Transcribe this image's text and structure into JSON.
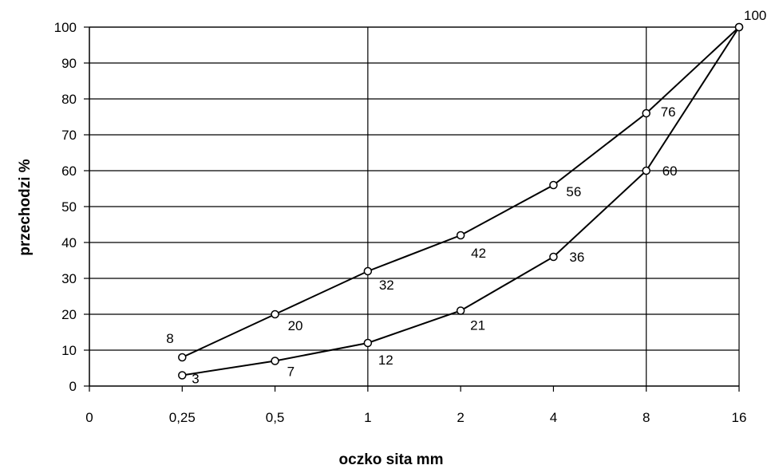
{
  "chart_data": {
    "type": "line",
    "title": "",
    "xlabel": "oczko sita mm",
    "ylabel": "przechodzi %",
    "x_tick_labels": [
      "0",
      "0,25",
      "0,5",
      "1",
      "2",
      "4",
      "8",
      "16"
    ],
    "x": [
      0.25,
      0.5,
      1,
      2,
      4,
      8,
      16
    ],
    "ylim": [
      0,
      100
    ],
    "y_ticks": [
      0,
      10,
      20,
      30,
      40,
      50,
      60,
      70,
      80,
      90,
      100
    ],
    "grid": "horizontal and vertical at 1, 8",
    "legend": "none",
    "series": [
      {
        "values": [
          8,
          20,
          32,
          42,
          56,
          76,
          100
        ],
        "labels": [
          "8",
          "20",
          "32",
          "42",
          "56",
          "76",
          "100"
        ]
      },
      {
        "values": [
          3,
          7,
          12,
          21,
          36,
          60,
          100
        ],
        "labels": [
          "3",
          "7",
          "12",
          "21",
          "36",
          "60",
          ""
        ]
      }
    ]
  }
}
